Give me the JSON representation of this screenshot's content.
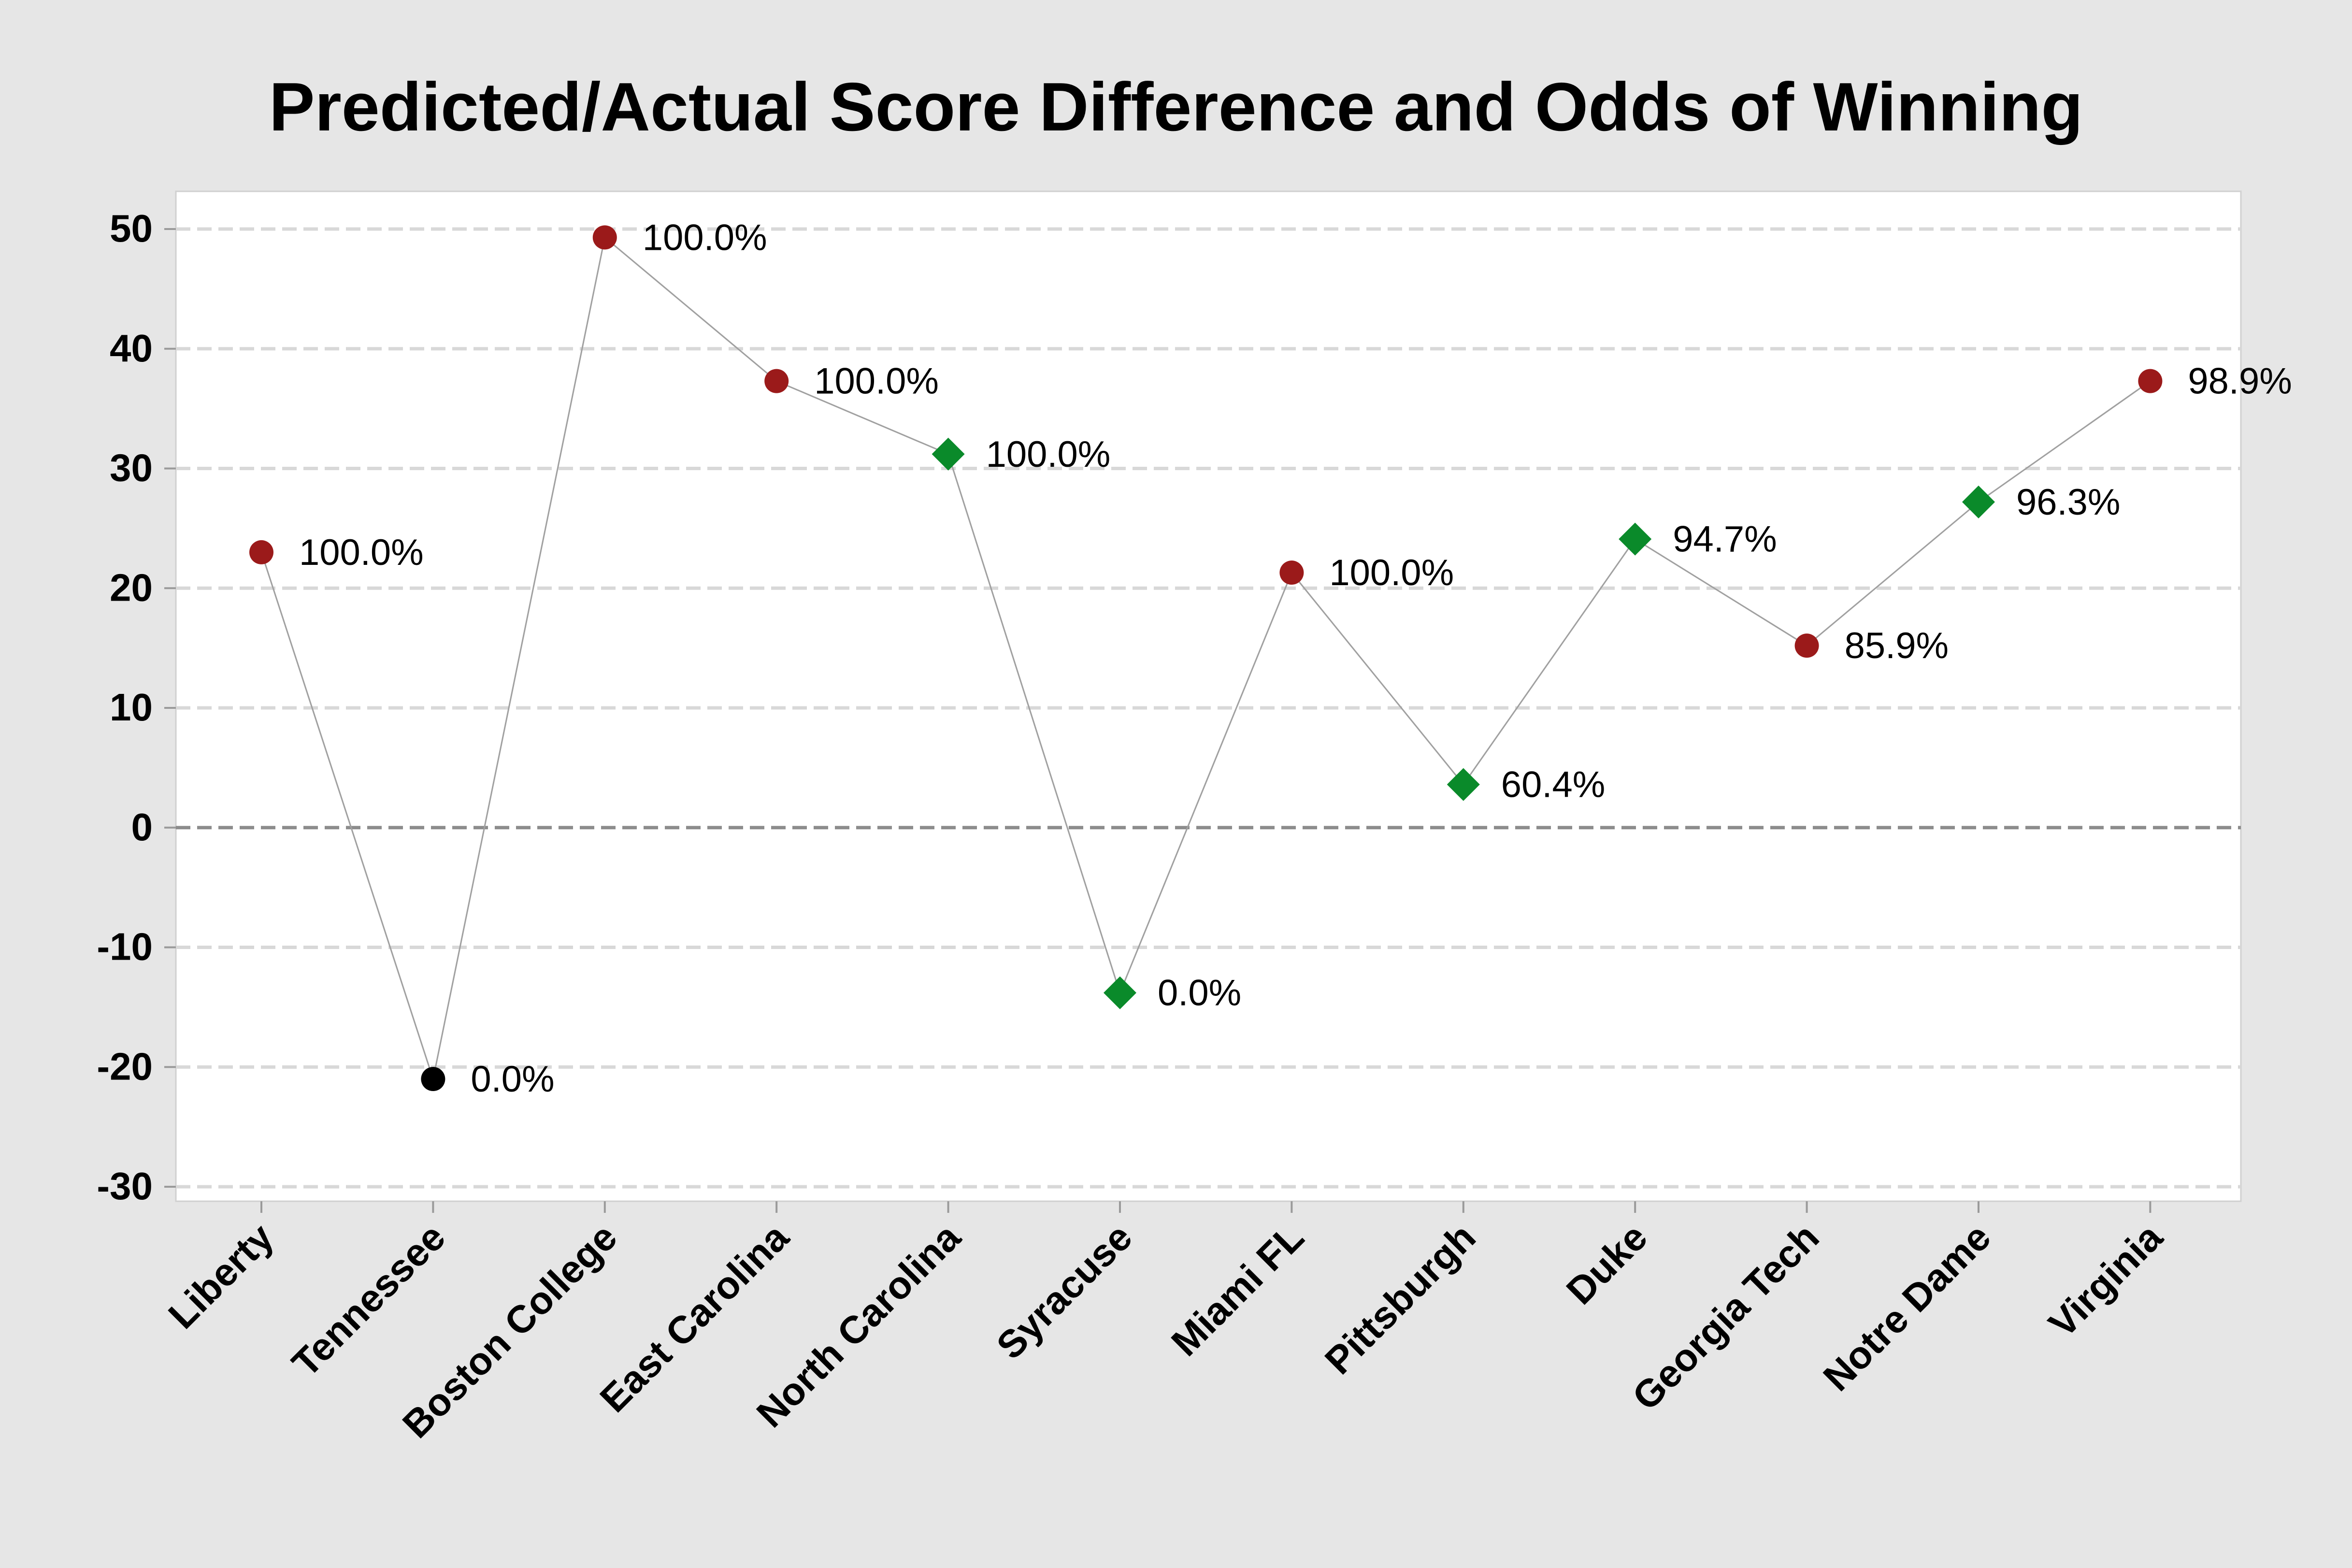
{
  "chart_data": {
    "type": "line",
    "title": "Predicted/Actual Score Difference and Odds of Winning",
    "xlabel": "",
    "ylabel": "",
    "ylim": [
      -31,
      53
    ],
    "y_ticks": [
      50,
      40,
      30,
      20,
      10,
      0,
      -10,
      -20,
      -30
    ],
    "y_tick_labels": [
      "50",
      "40",
      "30",
      "20",
      "10",
      "0",
      "-10",
      "-20",
      "-30"
    ],
    "grid": true,
    "reference_line_y": 0,
    "categories": [
      "Liberty",
      "Tennessee",
      "Boston College",
      "East Carolina",
      "North Carolina",
      "Syracuse",
      "Miami FL",
      "Pittsburgh",
      "Duke",
      "Georgia Tech",
      "Notre Dame",
      "Virginia"
    ],
    "values": [
      23,
      -21,
      49.3,
      37.3,
      31.2,
      -13.8,
      21.3,
      3.6,
      24.1,
      15.2,
      27.2,
      37.3
    ],
    "labels": [
      "100.0%",
      "0.0%",
      "100.0%",
      "100.0%",
      "100.0%",
      "0.0%",
      "100.0%",
      "60.4%",
      "94.7%",
      "85.9%",
      "96.3%",
      "98.9%"
    ],
    "marker_shapes": [
      "circle",
      "circle",
      "circle",
      "circle",
      "diamond",
      "diamond",
      "circle",
      "diamond",
      "diamond",
      "circle",
      "diamond",
      "circle"
    ],
    "marker_colors": [
      "#9b1a1a",
      "#000000",
      "#9b1a1a",
      "#9b1a1a",
      "#0a8a2a",
      "#0a8a2a",
      "#9b1a1a",
      "#0a8a2a",
      "#0a8a2a",
      "#9b1a1a",
      "#0a8a2a",
      "#9b1a1a"
    ]
  },
  "colors": {
    "page_background": "#e6e6e6",
    "plot_background": "#ffffff",
    "connector_line": "#a0a0a0",
    "gridline": "#d8d8d8",
    "zero_line": "#8c8c8c",
    "axis": "#c8c8c8"
  }
}
